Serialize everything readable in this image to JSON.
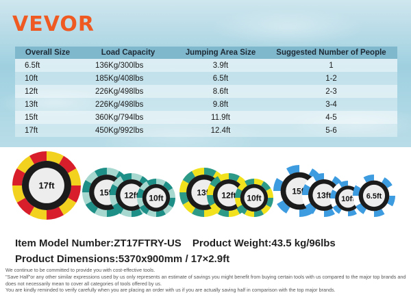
{
  "brand": {
    "logo": "VEVOR",
    "color": "#ef5a23"
  },
  "spec_table": {
    "headers": [
      "Overall Size",
      "Load Capacity",
      "Jumping Area Size",
      "Suggested Number of People"
    ],
    "rows": [
      [
        "6.5ft",
        "136Kg/300lbs",
        "3.9ft",
        "1"
      ],
      [
        "10ft",
        "185Kg/408lbs",
        "6.5ft",
        "1-2"
      ],
      [
        "12ft",
        "226Kg/498lbs",
        "8.6ft",
        "2-3"
      ],
      [
        "13ft",
        "226Kg/498lbs",
        "9.8ft",
        "3-4"
      ],
      [
        "15ft",
        "360Kg/794lbs",
        "11.9ft",
        "4-5"
      ],
      [
        "17ft",
        "450Kg/992lbs",
        "12.4ft",
        "5-6"
      ]
    ]
  },
  "trampolines": {
    "single": {
      "label": "17ft",
      "colors": [
        "#d81e2a",
        "#f2d21e"
      ]
    },
    "green_group": {
      "labels": [
        "15ft",
        "12ft",
        "10ft"
      ],
      "colors": [
        "#1e8f86",
        "#a7d8d0"
      ]
    },
    "yellow_group": {
      "labels": [
        "13ft",
        "12ft",
        "10ft"
      ],
      "colors": [
        "#2c9a86",
        "#f2e21e"
      ]
    },
    "blue_group": {
      "labels": [
        "15ft",
        "13ft",
        "10ft",
        "6.5ft"
      ],
      "colors": [
        "#3d9be0",
        "#ffffff"
      ]
    }
  },
  "product": {
    "model_label": "Item Model Number:",
    "model_value": "ZT17FTRY-US",
    "weight_label": "Product Weight:",
    "weight_value": "43.5 kg/96lbs",
    "dimensions_label": "Product Dimensions:",
    "dimensions_value": "5370x900mm / 17×2.9ft"
  },
  "disclaimer": [
    "We continue to be committed to provide you with cost-effective tools.",
    "\"Save Half\"or any other similar expressions used by us only represents an estimate of savings you might benefit from buying certain tools with us compared to the major top brands and does not necessarily mean to cover all categories of tools offered by us.",
    "You are kindly reminded to verify carefully when you are placing an order with us if you are actually saving half in comparison with the top major brands."
  ]
}
